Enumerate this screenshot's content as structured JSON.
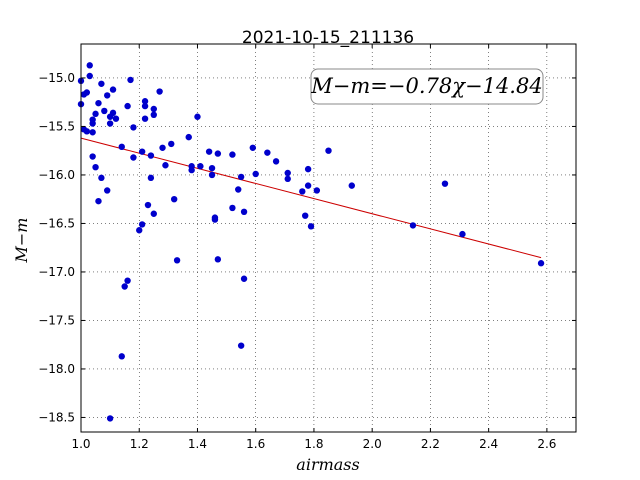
{
  "chart_data": {
    "type": "scatter",
    "title": "2021-10-15_211136",
    "xlabel": "airmass",
    "ylabel": "M−m",
    "annotation": "M−m=−0.78χ−14.84",
    "xlim": [
      1.0,
      2.7
    ],
    "ylim": [
      -18.65,
      -14.65
    ],
    "grid": true,
    "x_ticks": [
      1.0,
      1.2,
      1.4,
      1.6,
      1.8,
      2.0,
      2.2,
      2.4,
      2.6
    ],
    "x_tick_labels": [
      "1.0",
      "1.2",
      "1.4",
      "1.6",
      "1.8",
      "2.0",
      "2.2",
      "2.4",
      "2.6"
    ],
    "y_ticks": [
      -15.0,
      -15.5,
      -16.0,
      -16.5,
      -17.0,
      -17.5,
      -18.0,
      -18.5
    ],
    "y_tick_labels": [
      "−15.0",
      "−15.5",
      "−16.0",
      "−16.5",
      "−17.0",
      "−17.5",
      "−18.0",
      "−18.5"
    ],
    "series": [
      {
        "type": "scatter",
        "color": "#0000cc",
        "points": [
          [
            1.0,
            -15.03
          ],
          [
            1.0,
            -15.27
          ],
          [
            1.01,
            -15.53
          ],
          [
            1.01,
            -15.17
          ],
          [
            1.02,
            -15.15
          ],
          [
            1.02,
            -15.55
          ],
          [
            1.03,
            -14.98
          ],
          [
            1.03,
            -14.87
          ],
          [
            1.04,
            -15.43
          ],
          [
            1.04,
            -15.47
          ],
          [
            1.04,
            -15.81
          ],
          [
            1.05,
            -15.92
          ],
          [
            1.05,
            -15.37
          ],
          [
            1.06,
            -16.27
          ],
          [
            1.06,
            -15.26
          ],
          [
            1.07,
            -15.06
          ],
          [
            1.07,
            -16.03
          ],
          [
            1.08,
            -15.34
          ],
          [
            1.09,
            -15.18
          ],
          [
            1.09,
            -16.16
          ],
          [
            1.1,
            -15.47
          ],
          [
            1.1,
            -15.4
          ],
          [
            1.11,
            -15.12
          ],
          [
            1.11,
            -15.36
          ],
          [
            1.12,
            -15.42
          ],
          [
            1.04,
            -15.56
          ],
          [
            1.1,
            -18.51
          ],
          [
            1.14,
            -15.71
          ],
          [
            1.14,
            -17.87
          ],
          [
            1.15,
            -17.15
          ],
          [
            1.16,
            -17.09
          ],
          [
            1.16,
            -15.29
          ],
          [
            1.17,
            -15.02
          ],
          [
            1.18,
            -15.51
          ],
          [
            1.18,
            -15.82
          ],
          [
            1.2,
            -16.57
          ],
          [
            1.21,
            -16.51
          ],
          [
            1.21,
            -15.76
          ],
          [
            1.22,
            -15.24
          ],
          [
            1.22,
            -15.29
          ],
          [
            1.22,
            -15.42
          ],
          [
            1.23,
            -16.31
          ],
          [
            1.24,
            -15.8
          ],
          [
            1.24,
            -16.03
          ],
          [
            1.25,
            -16.4
          ],
          [
            1.25,
            -15.38
          ],
          [
            1.25,
            -15.32
          ],
          [
            1.27,
            -15.14
          ],
          [
            1.28,
            -15.72
          ],
          [
            1.29,
            -15.9
          ],
          [
            1.31,
            -15.68
          ],
          [
            1.32,
            -16.25
          ],
          [
            1.33,
            -16.88
          ],
          [
            1.37,
            -15.61
          ],
          [
            1.38,
            -15.95
          ],
          [
            1.38,
            -15.91
          ],
          [
            1.4,
            -15.4
          ],
          [
            1.41,
            -15.91
          ],
          [
            1.44,
            -15.76
          ],
          [
            1.45,
            -15.93
          ],
          [
            1.45,
            -16.0
          ],
          [
            1.46,
            -16.44
          ],
          [
            1.46,
            -16.46
          ],
          [
            1.47,
            -15.78
          ],
          [
            1.47,
            -16.87
          ],
          [
            1.52,
            -16.34
          ],
          [
            1.52,
            -15.79
          ],
          [
            1.54,
            -16.15
          ],
          [
            1.55,
            -16.02
          ],
          [
            1.55,
            -17.76
          ],
          [
            1.56,
            -17.07
          ],
          [
            1.56,
            -16.38
          ],
          [
            1.59,
            -15.72
          ],
          [
            1.6,
            -15.99
          ],
          [
            1.64,
            -15.77
          ],
          [
            1.67,
            -15.86
          ],
          [
            1.71,
            -16.04
          ],
          [
            1.71,
            -15.98
          ],
          [
            1.76,
            -16.17
          ],
          [
            1.77,
            -16.42
          ],
          [
            1.78,
            -15.94
          ],
          [
            1.78,
            -16.11
          ],
          [
            1.79,
            -16.53
          ],
          [
            1.81,
            -16.16
          ],
          [
            1.85,
            -15.75
          ],
          [
            1.93,
            -16.11
          ],
          [
            2.14,
            -16.52
          ],
          [
            2.25,
            -16.09
          ],
          [
            2.31,
            -16.61
          ],
          [
            2.58,
            -16.91
          ]
        ]
      },
      {
        "type": "line",
        "name": "fit",
        "color": "#cc0000",
        "slope": -0.78,
        "intercept": -14.84,
        "x_range": [
          1.0,
          2.58
        ]
      }
    ]
  }
}
